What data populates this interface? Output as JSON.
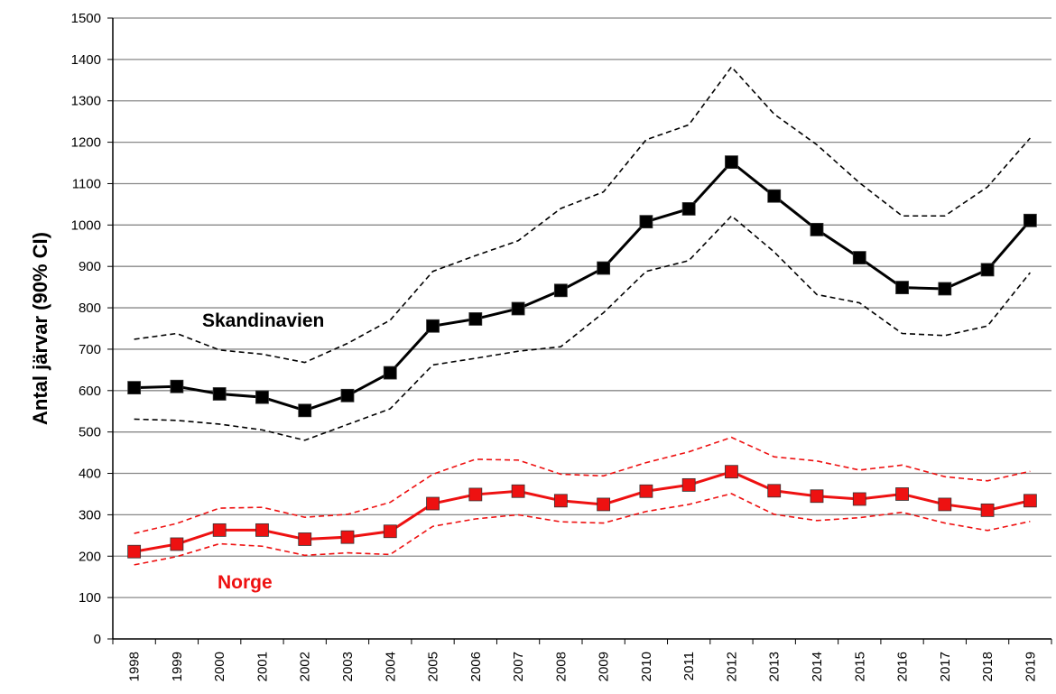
{
  "chart_data": {
    "type": "line",
    "y_label": "Antal järvar (90% CI)",
    "categories": [
      "1998",
      "1999",
      "2000",
      "2001",
      "2002",
      "2003",
      "2004",
      "2005",
      "2006",
      "2007",
      "2008",
      "2009",
      "2010",
      "2011",
      "2012",
      "2013",
      "2014",
      "2015",
      "2016",
      "2017",
      "2018",
      "2019"
    ],
    "series": [
      {
        "name": "Skandinavien",
        "color": "#000000",
        "style": "solid",
        "marker": true,
        "values": [
          607,
          610,
          592,
          584,
          552,
          588,
          643,
          756,
          773,
          798,
          842,
          896,
          1008,
          1039,
          1152,
          1070,
          989,
          921,
          849,
          846,
          892,
          1011
        ]
      },
      {
        "color": "#000000",
        "style": "dashed",
        "marker": false,
        "values": [
          724,
          738,
          698,
          688,
          668,
          714,
          770,
          888,
          926,
          962,
          1040,
          1080,
          1206,
          1242,
          1382,
          1268,
          1194,
          1102,
          1022,
          1022,
          1092,
          1210
        ]
      },
      {
        "color": "#000000",
        "style": "dashed",
        "marker": false,
        "values": [
          531,
          528,
          519,
          505,
          480,
          518,
          556,
          662,
          678,
          695,
          706,
          788,
          888,
          914,
          1022,
          935,
          832,
          812,
          738,
          733,
          756,
          885
        ]
      },
      {
        "name": "Norge",
        "color": "#ee1111",
        "style": "solid",
        "marker": true,
        "values": [
          211,
          229,
          263,
          263,
          241,
          246,
          260,
          327,
          349,
          357,
          334,
          325,
          357,
          372,
          404,
          358,
          345,
          338,
          350,
          325,
          311,
          334
        ]
      },
      {
        "color": "#ee1111",
        "style": "dashed",
        "marker": false,
        "values": [
          255,
          279,
          316,
          318,
          294,
          301,
          330,
          398,
          434,
          432,
          398,
          394,
          426,
          452,
          487,
          440,
          430,
          408,
          420,
          392,
          382,
          405
        ]
      },
      {
        "color": "#ee1111",
        "style": "dashed",
        "marker": false,
        "values": [
          179,
          199,
          230,
          224,
          202,
          208,
          204,
          272,
          290,
          300,
          283,
          280,
          308,
          325,
          351,
          301,
          286,
          293,
          306,
          280,
          262,
          284
        ]
      }
    ],
    "ylim": [
      0,
      1500
    ],
    "yticks": [
      0,
      100,
      200,
      300,
      400,
      500,
      600,
      700,
      800,
      900,
      1000,
      1100,
      1200,
      1300,
      1400,
      1500
    ],
    "grid": true
  }
}
